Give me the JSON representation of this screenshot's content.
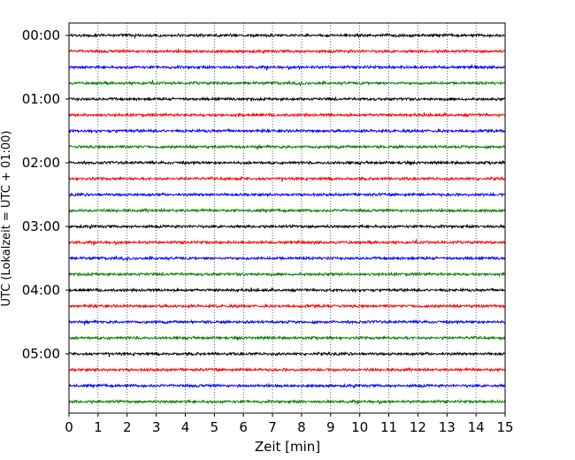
{
  "chart_data": {
    "type": "line",
    "title": "",
    "xlabel": "Zeit  [min]",
    "ylabel": "UTC (Lokalzeit = UTC + 01:00)",
    "xlim": [
      0,
      15
    ],
    "x_ticks": [
      "0",
      "1",
      "2",
      "3",
      "4",
      "5",
      "6",
      "7",
      "8",
      "9",
      "10",
      "11",
      "12",
      "13",
      "14",
      "15"
    ],
    "y_ticks": [
      "00:00",
      "01:00",
      "02:00",
      "03:00",
      "04:00",
      "05:00"
    ],
    "grid": "vertical dotted",
    "trace_interval_min": 15,
    "trace_count": 24,
    "trace_colors": [
      "#000000",
      "#ff0000",
      "#0000ff",
      "#008000"
    ],
    "trace_labels": [
      "00:00",
      "00:15",
      "00:30",
      "00:45",
      "01:00",
      "01:15",
      "01:30",
      "01:45",
      "02:00",
      "02:15",
      "02:30",
      "02:45",
      "03:00",
      "03:15",
      "03:30",
      "03:45",
      "04:00",
      "04:15",
      "04:30",
      "04:45",
      "05:00",
      "05:15",
      "05:30",
      "05:45"
    ]
  }
}
